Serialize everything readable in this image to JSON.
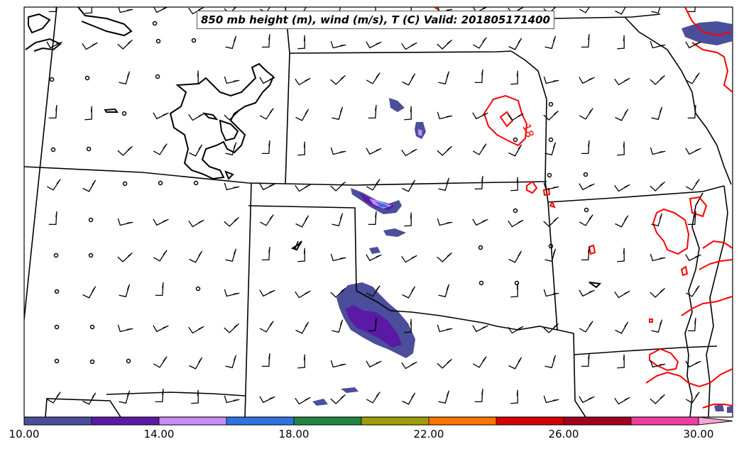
{
  "title": "850 mb height (m), wind (m/s), T (C) Valid: 201805171400",
  "contour_label": "18",
  "colorbar": {
    "tick_labels": [
      "10.00",
      "14.00",
      "18.00",
      "22.00",
      "26.00",
      "30.00"
    ],
    "colors": [
      "#4b4e9a",
      "#5a1aa6",
      "#c78cf5",
      "#2f73e3",
      "#21843f",
      "#9d9d0a",
      "#ff7300",
      "#d40000",
      "#a0001e",
      "#f03ea0",
      "#ffa3d6"
    ]
  },
  "colors": {
    "temperature_contour": "#ff0000",
    "borders": "#000000",
    "wind_barbs": "#000000",
    "wind_fill_main": "#4b4e9a"
  }
}
